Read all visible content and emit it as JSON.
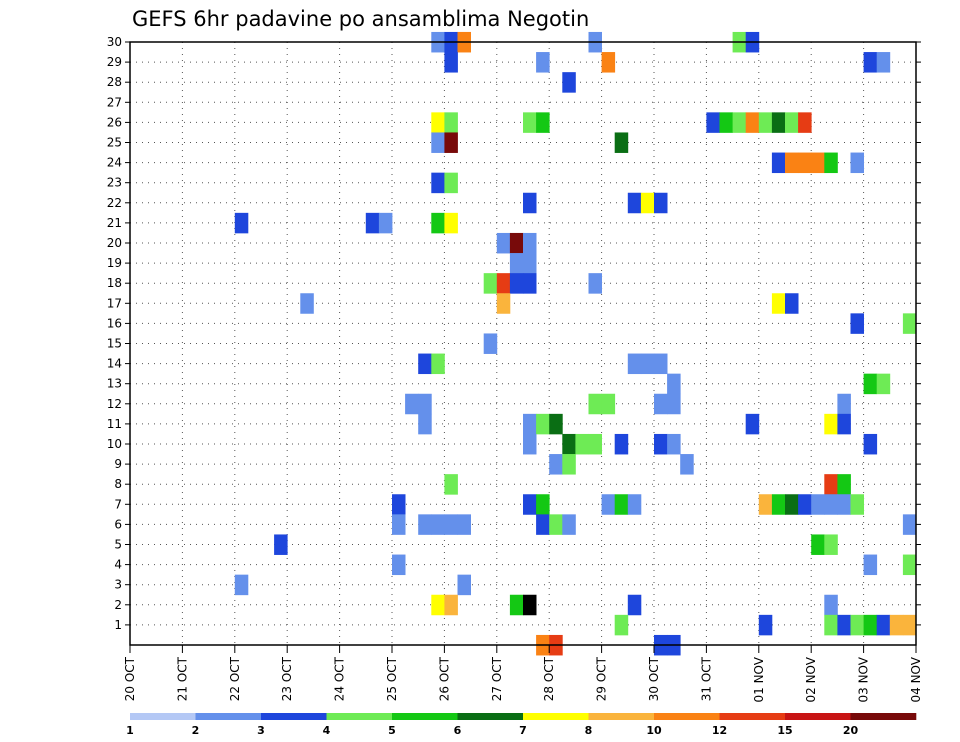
{
  "chart_data": {
    "type": "heatmap",
    "title": "GEFS 6hr padavine po ansamblima Negotin",
    "y_ticks": [
      1,
      2,
      3,
      4,
      5,
      6,
      7,
      8,
      9,
      10,
      11,
      12,
      13,
      14,
      15,
      16,
      17,
      18,
      19,
      20,
      21,
      22,
      23,
      24,
      25,
      26,
      27,
      28,
      29,
      30
    ],
    "y_range": [
      0,
      30
    ],
    "x_tick_labels": [
      "20 OCT",
      "21 OCT",
      "22 OCT",
      "23 OCT",
      "24 OCT",
      "25 OCT",
      "26 OCT",
      "27 OCT",
      "28 OCT",
      "29 OCT",
      "30 OCT",
      "31 OCT",
      "01 NOV",
      "02 NOV",
      "03 NOV",
      "04 NOV"
    ],
    "x_range_steps": [
      0,
      60
    ],
    "step_hours": 6,
    "grid": true,
    "colorbar": {
      "labels": [
        "1",
        "2",
        "3",
        "4",
        "5",
        "6",
        "7",
        "8",
        "10",
        "12",
        "15",
        "20"
      ],
      "colors": [
        "#b4c8f5",
        "#6490eb",
        "#1e46dc",
        "#6eeb55",
        "#14c814",
        "#0a6e14",
        "#ffff00",
        "#fab43c",
        "#fa8214",
        "#e63c14",
        "#c81414",
        "#780a0a"
      ]
    },
    "cells": [
      [
        23,
        30,
        1
      ],
      [
        24,
        30,
        2
      ],
      [
        25,
        30,
        8
      ],
      [
        35,
        30,
        1
      ],
      [
        46,
        30,
        3
      ],
      [
        47,
        30,
        2
      ],
      [
        24,
        29,
        2
      ],
      [
        31,
        29,
        1
      ],
      [
        36,
        29,
        8
      ],
      [
        56,
        29,
        2
      ],
      [
        57,
        29,
        1
      ],
      [
        33,
        28,
        2
      ],
      [
        23,
        26,
        6
      ],
      [
        24,
        26,
        3
      ],
      [
        30,
        26,
        3
      ],
      [
        31,
        26,
        4
      ],
      [
        44,
        26,
        2
      ],
      [
        45,
        26,
        4
      ],
      [
        46,
        26,
        3
      ],
      [
        47,
        26,
        8
      ],
      [
        48,
        26,
        3
      ],
      [
        49,
        26,
        5
      ],
      [
        50,
        26,
        3
      ],
      [
        51,
        26,
        9
      ],
      [
        23,
        25,
        1
      ],
      [
        24,
        25,
        11
      ],
      [
        37,
        25,
        5
      ],
      [
        49,
        24,
        2
      ],
      [
        50,
        24,
        8
      ],
      [
        51,
        24,
        8
      ],
      [
        52,
        24,
        8
      ],
      [
        53,
        24,
        4
      ],
      [
        55,
        24,
        1
      ],
      [
        23,
        23,
        2
      ],
      [
        24,
        23,
        3
      ],
      [
        30,
        22,
        2
      ],
      [
        38,
        22,
        2
      ],
      [
        39,
        22,
        6
      ],
      [
        40,
        22,
        2
      ],
      [
        8,
        21,
        2
      ],
      [
        18,
        21,
        2
      ],
      [
        19,
        21,
        1
      ],
      [
        23,
        21,
        4
      ],
      [
        24,
        21,
        6
      ],
      [
        28,
        20,
        1
      ],
      [
        29,
        20,
        11
      ],
      [
        30,
        20,
        1
      ],
      [
        29,
        19,
        1
      ],
      [
        30,
        19,
        1
      ],
      [
        27,
        18,
        3
      ],
      [
        28,
        18,
        9
      ],
      [
        29,
        18,
        2
      ],
      [
        30,
        18,
        2
      ],
      [
        35,
        18,
        1
      ],
      [
        13,
        17,
        1
      ],
      [
        28,
        17,
        7
      ],
      [
        49,
        17,
        6
      ],
      [
        50,
        17,
        2
      ],
      [
        55,
        16,
        2
      ],
      [
        59,
        16,
        3
      ],
      [
        27,
        15,
        1
      ],
      [
        22,
        14,
        2
      ],
      [
        23,
        14,
        3
      ],
      [
        38,
        14,
        1
      ],
      [
        39,
        14,
        1
      ],
      [
        40,
        14,
        1
      ],
      [
        41,
        13,
        1
      ],
      [
        56,
        13,
        4
      ],
      [
        57,
        13,
        3
      ],
      [
        21,
        12,
        1
      ],
      [
        22,
        12,
        1
      ],
      [
        35,
        12,
        3
      ],
      [
        36,
        12,
        3
      ],
      [
        40,
        12,
        1
      ],
      [
        41,
        12,
        1
      ],
      [
        54,
        12,
        1
      ],
      [
        22,
        11,
        1
      ],
      [
        30,
        11,
        1
      ],
      [
        31,
        11,
        3
      ],
      [
        32,
        11,
        5
      ],
      [
        47,
        11,
        2
      ],
      [
        53,
        11,
        6
      ],
      [
        54,
        11,
        2
      ],
      [
        30,
        10,
        1
      ],
      [
        33,
        10,
        5
      ],
      [
        34,
        10,
        3
      ],
      [
        35,
        10,
        3
      ],
      [
        37,
        10,
        2
      ],
      [
        40,
        10,
        2
      ],
      [
        41,
        10,
        1
      ],
      [
        56,
        10,
        2
      ],
      [
        32,
        9,
        1
      ],
      [
        33,
        9,
        3
      ],
      [
        42,
        9,
        1
      ],
      [
        24,
        8,
        3
      ],
      [
        53,
        8,
        9
      ],
      [
        54,
        8,
        4
      ],
      [
        20,
        7,
        2
      ],
      [
        30,
        7,
        2
      ],
      [
        31,
        7,
        4
      ],
      [
        36,
        7,
        1
      ],
      [
        37,
        7,
        4
      ],
      [
        38,
        7,
        1
      ],
      [
        48,
        7,
        7
      ],
      [
        49,
        7,
        4
      ],
      [
        50,
        7,
        5
      ],
      [
        51,
        7,
        2
      ],
      [
        52,
        7,
        1
      ],
      [
        53,
        7,
        1
      ],
      [
        54,
        7,
        1
      ],
      [
        55,
        7,
        3
      ],
      [
        20,
        6,
        1
      ],
      [
        22,
        6,
        1
      ],
      [
        23,
        6,
        1
      ],
      [
        24,
        6,
        1
      ],
      [
        25,
        6,
        1
      ],
      [
        31,
        6,
        2
      ],
      [
        32,
        6,
        3
      ],
      [
        33,
        6,
        1
      ],
      [
        59,
        6,
        1
      ],
      [
        11,
        5,
        2
      ],
      [
        52,
        5,
        4
      ],
      [
        53,
        5,
        3
      ],
      [
        20,
        4,
        1
      ],
      [
        56,
        4,
        1
      ],
      [
        59,
        4,
        3
      ],
      [
        8,
        3,
        1
      ],
      [
        25,
        3,
        1
      ],
      [
        23,
        2,
        6
      ],
      [
        24,
        2,
        7
      ],
      [
        29,
        2,
        4
      ],
      [
        30,
        2,
        12
      ],
      [
        38,
        2,
        2
      ],
      [
        53,
        2,
        1
      ],
      [
        37,
        1,
        3
      ],
      [
        48,
        1,
        2
      ],
      [
        53,
        1,
        3
      ],
      [
        54,
        1,
        2
      ],
      [
        55,
        1,
        3
      ],
      [
        56,
        1,
        4
      ],
      [
        57,
        1,
        2
      ],
      [
        58,
        1,
        7
      ],
      [
        59,
        1,
        7
      ],
      [
        31,
        0,
        8
      ],
      [
        32,
        0,
        9
      ],
      [
        40,
        0,
        2
      ],
      [
        41,
        0,
        2
      ]
    ]
  }
}
